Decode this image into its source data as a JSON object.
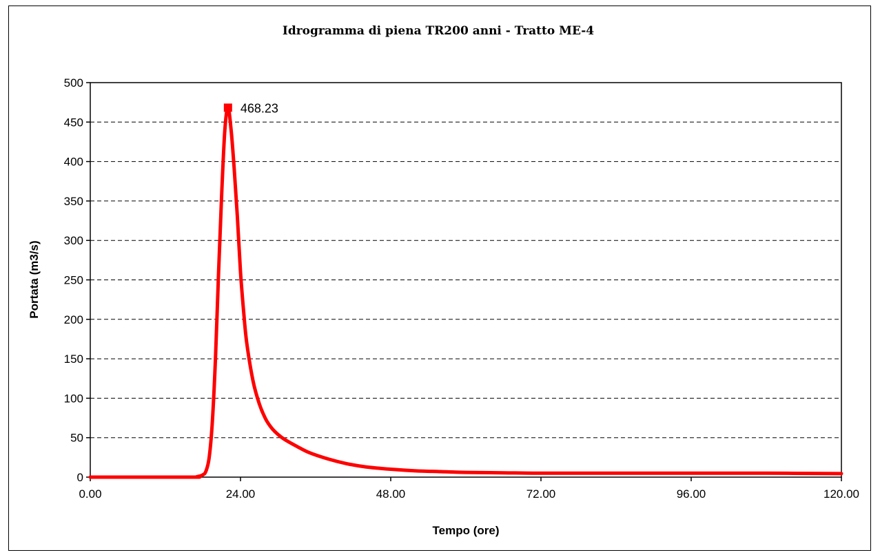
{
  "chart_data": {
    "type": "line",
    "title": "Idrogramma di piena TR200 anni - Tratto ME-4",
    "xlabel": "Tempo (ore)",
    "ylabel": "Portata (m3/s)",
    "xlim": [
      0,
      120
    ],
    "ylim": [
      0,
      500
    ],
    "x_ticks": [
      "0.00",
      "24.00",
      "48.00",
      "72.00",
      "96.00",
      "120.00"
    ],
    "x_tick_values": [
      0,
      24,
      48,
      72,
      96,
      120
    ],
    "y_ticks": [
      "0",
      "50",
      "100",
      "150",
      "200",
      "250",
      "300",
      "350",
      "400",
      "450",
      "500"
    ],
    "y_tick_values": [
      0,
      50,
      100,
      150,
      200,
      250,
      300,
      350,
      400,
      450,
      500
    ],
    "grid": "horizontal-dashed",
    "line_color": "#ff0000",
    "series": [
      {
        "x": [
          0,
          16,
          17.0,
          18.0,
          18.5,
          19.0,
          19.5,
          20.0,
          20.5,
          21.0,
          21.5,
          22.0,
          22.5,
          23.0,
          23.5,
          24.0,
          24.5,
          25.0,
          26.0,
          27.0,
          28.0,
          29.0,
          30.0,
          31.0,
          33.0,
          35.0,
          38.0,
          41.0,
          44.0,
          48.0,
          52.0,
          56.0,
          60.0,
          66.0,
          72.0,
          84.0,
          96.0,
          108.0,
          120.0
        ],
        "values": [
          0,
          0,
          0.5,
          3,
          8,
          25,
          70,
          150,
          260,
          360,
          440,
          468.23,
          440,
          390,
          330,
          260,
          210,
          170,
          122,
          93,
          74,
          62,
          54,
          48,
          39,
          31,
          23,
          17,
          13,
          10,
          8,
          7,
          6,
          5.5,
          5,
          5,
          5,
          5,
          4.5
        ]
      }
    ],
    "annotations": [
      {
        "x": 22,
        "y": 468.23,
        "text": "468.23",
        "marker": "square"
      }
    ]
  }
}
